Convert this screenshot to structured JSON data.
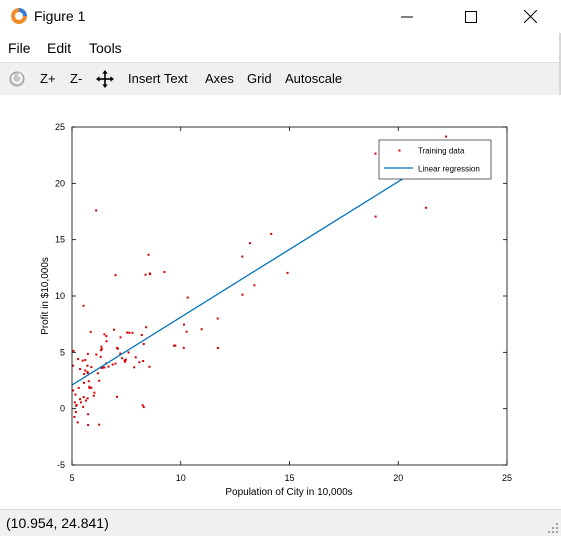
{
  "window": {
    "title": "Figure 1",
    "icon": "octave-icon",
    "controls": [
      "minimize-icon",
      "maximize-icon",
      "close-icon"
    ]
  },
  "menu": [
    "File",
    "Edit",
    "Tools"
  ],
  "toolbar": {
    "items": [
      "Z+",
      "Z-",
      "Insert Text",
      "Axes",
      "Grid",
      "Autoscale"
    ],
    "icons": [
      "rotate-icon",
      "pan-icon"
    ]
  },
  "status": {
    "coords": "(10.954, 24.841)"
  },
  "colors": {
    "marker": "#d40000",
    "line": "#0072bd",
    "toolbar_bg": "#f0f0f0"
  },
  "chart_data": {
    "type": "scatter",
    "xlabel": "Population of City in 10,000s",
    "ylabel": "Profit in $10,000s",
    "xlim": [
      5,
      25
    ],
    "ylim": [
      -5,
      25
    ],
    "xticks": [
      5,
      10,
      15,
      20,
      25
    ],
    "yticks": [
      -5,
      0,
      5,
      10,
      15,
      20,
      25
    ],
    "grid": false,
    "legend_position": "top-right",
    "series": [
      {
        "name": "Training data",
        "kind": "points",
        "x": [
          6.11,
          5.53,
          8.52,
          7.0,
          5.86,
          8.38,
          7.48,
          8.58,
          6.49,
          5.05,
          5.71,
          14.16,
          5.73,
          8.41,
          5.64,
          5.37,
          6.37,
          5.13,
          6.43,
          7.07,
          6.19,
          20.27,
          5.49,
          6.33,
          5.56,
          18.95,
          12.83,
          10.96,
          13.18,
          22.2,
          5.26,
          6.59,
          9.25,
          5.89,
          8.21,
          7.93,
          8.1,
          5.61,
          12.84,
          6.35,
          5.41,
          6.87,
          11.71,
          5.77,
          7.78,
          7.07,
          5.07,
          5.8,
          11.7,
          5.54,
          7.54,
          5.31,
          7.42,
          7.6,
          6.03,
          6.25,
          6.25,
          6.32,
          6.49,
          5.55,
          5.89,
          5.71,
          10.27,
          5.11,
          5.73,
          5.18,
          6.68,
          5.74,
          13.39,
          6.12,
          6.57,
          6.93,
          7.0,
          7.11,
          6.36,
          5.74,
          7.3,
          7.44,
          7.64,
          8.59,
          8.3,
          21.28,
          14.91,
          18.96,
          7.22,
          8.3,
          5.37,
          8.56,
          10.14,
          5.19,
          7.23,
          5.61,
          10.32,
          6.58,
          5.05,
          9.75,
          5.8,
          8.27,
          9.69,
          5.51,
          5.28,
          5.72,
          8.25,
          10.15,
          6.0,
          5.16,
          5.21,
          7.86
        ],
        "y": [
          17.59,
          9.13,
          13.66,
          11.85,
          6.82,
          11.89,
          4.35,
          12.0,
          6.6,
          3.82,
          3.25,
          15.51,
          3.16,
          7.23,
          0.72,
          3.51,
          5.3,
          0.56,
          3.65,
          5.39,
          3.14,
          21.77,
          4.26,
          5.19,
          3.08,
          22.64,
          13.5,
          7.05,
          14.69,
          24.15,
          -1.22,
          5.99,
          12.13,
          1.85,
          6.54,
          4.56,
          4.12,
          3.39,
          10.12,
          5.5,
          0.56,
          3.91,
          5.39,
          2.44,
          6.73,
          1.05,
          5.13,
          1.84,
          8.0,
          1.02,
          6.75,
          1.84,
          4.29,
          4.99,
          1.42,
          -1.42,
          2.48,
          4.6,
          3.66,
          2.29,
          3.69,
          3.81,
          6.83,
          -0.74,
          4.86,
          -0.3,
          3.73,
          -0.5,
          10.95,
          4.8,
          4.02,
          7.01,
          4.0,
          5.32,
          3.61,
          -1.46,
          4.48,
          4.17,
          6.73,
          11.95,
          0.14,
          17.83,
          12.05,
          17.05,
          4.89,
          5.74,
          0.84,
          3.72,
          5.4,
          0.25,
          6.33,
          4.32,
          9.86,
          6.44,
          1.62,
          5.6,
          1.95,
          4.23,
          5.59,
          0.16,
          4.4,
          0.92,
          0.3,
          7.46,
          1.15,
          1.25,
          0.33,
          3.67
        ]
      },
      {
        "name": "Linear regression",
        "kind": "line",
        "x": [
          5,
          22.2
        ],
        "y": [
          2.1,
          22.8
        ]
      }
    ]
  }
}
